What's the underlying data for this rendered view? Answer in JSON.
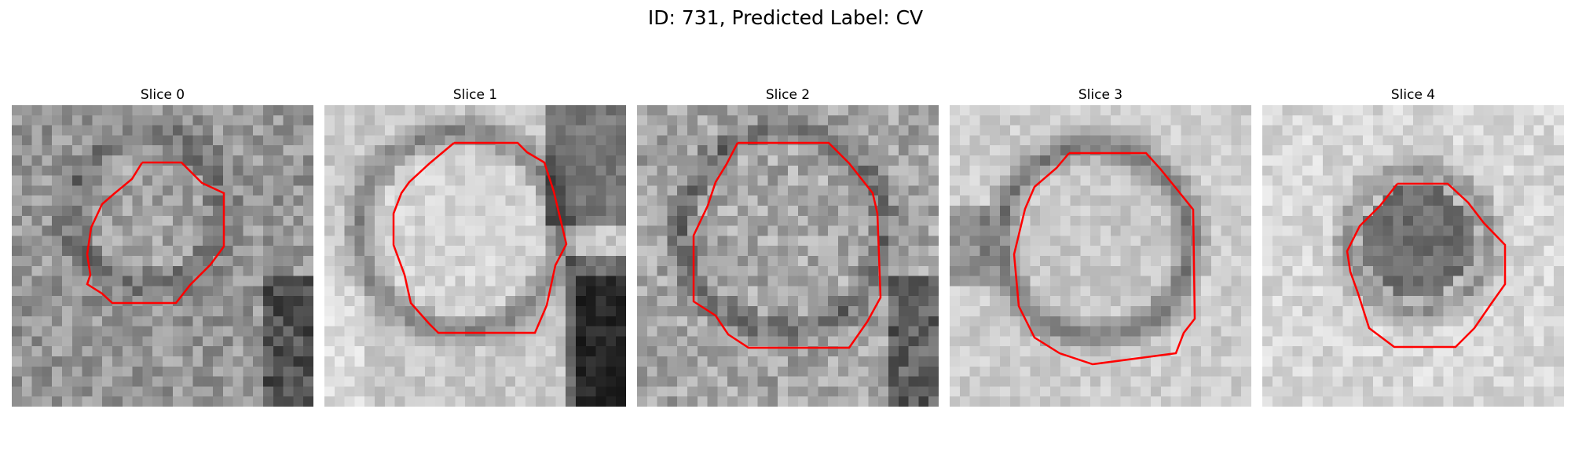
{
  "figure": {
    "title": "ID: 731, Predicted Label: CV"
  },
  "panels": [
    {
      "title": "Slice 0",
      "contour_color": "#ff0000"
    },
    {
      "title": "Slice 1",
      "contour_color": "#ff0000"
    },
    {
      "title": "Slice 2",
      "contour_color": "#ff0000"
    },
    {
      "title": "Slice 3",
      "contour_color": "#ff0000"
    },
    {
      "title": "Slice 4",
      "contour_color": "#ff0000"
    }
  ],
  "colormap": "gray"
}
